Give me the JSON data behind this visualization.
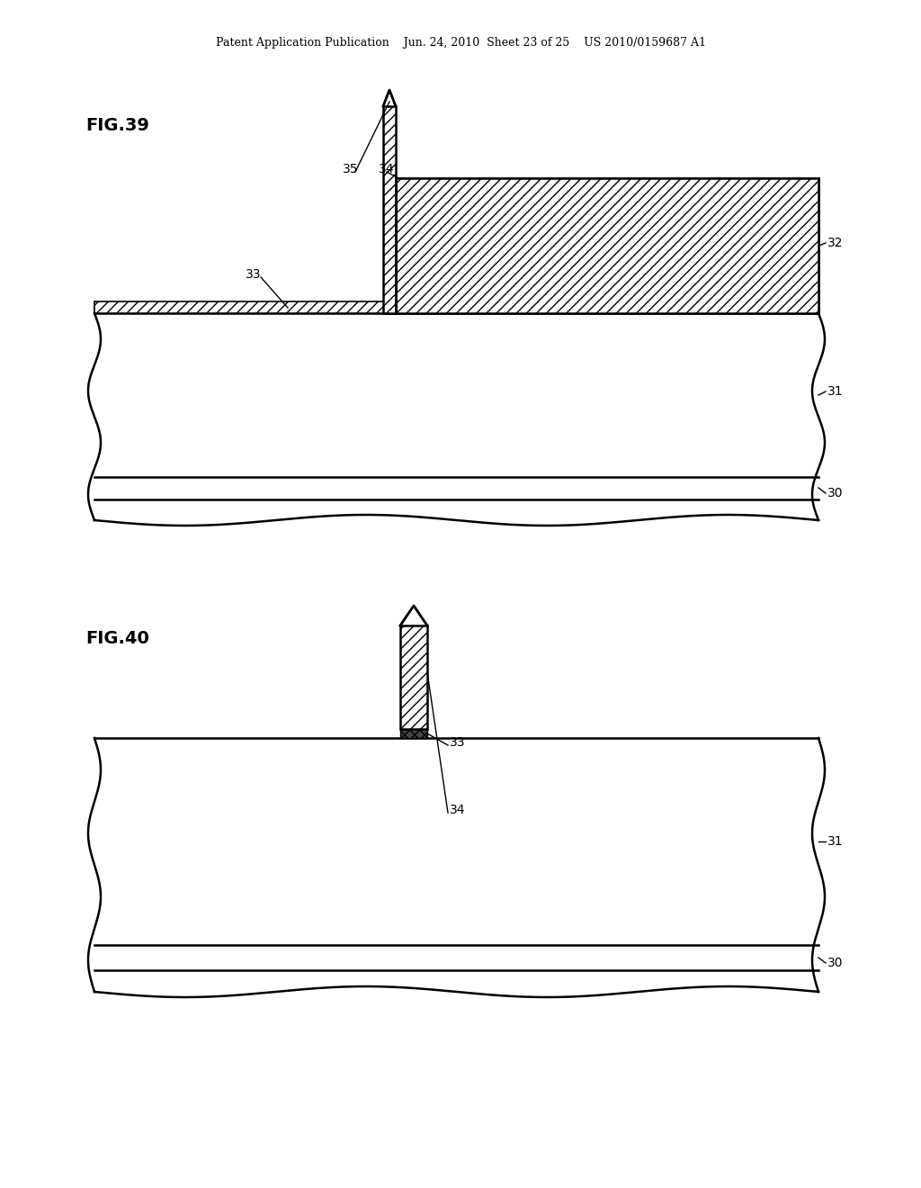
{
  "bg_color": "#ffffff",
  "line_color": "#000000",
  "header_text": "Patent Application Publication    Jun. 24, 2010  Sheet 23 of 25    US 2010/0159687 A1",
  "fig39_label": "FIG.39",
  "fig40_label": "FIG.40"
}
